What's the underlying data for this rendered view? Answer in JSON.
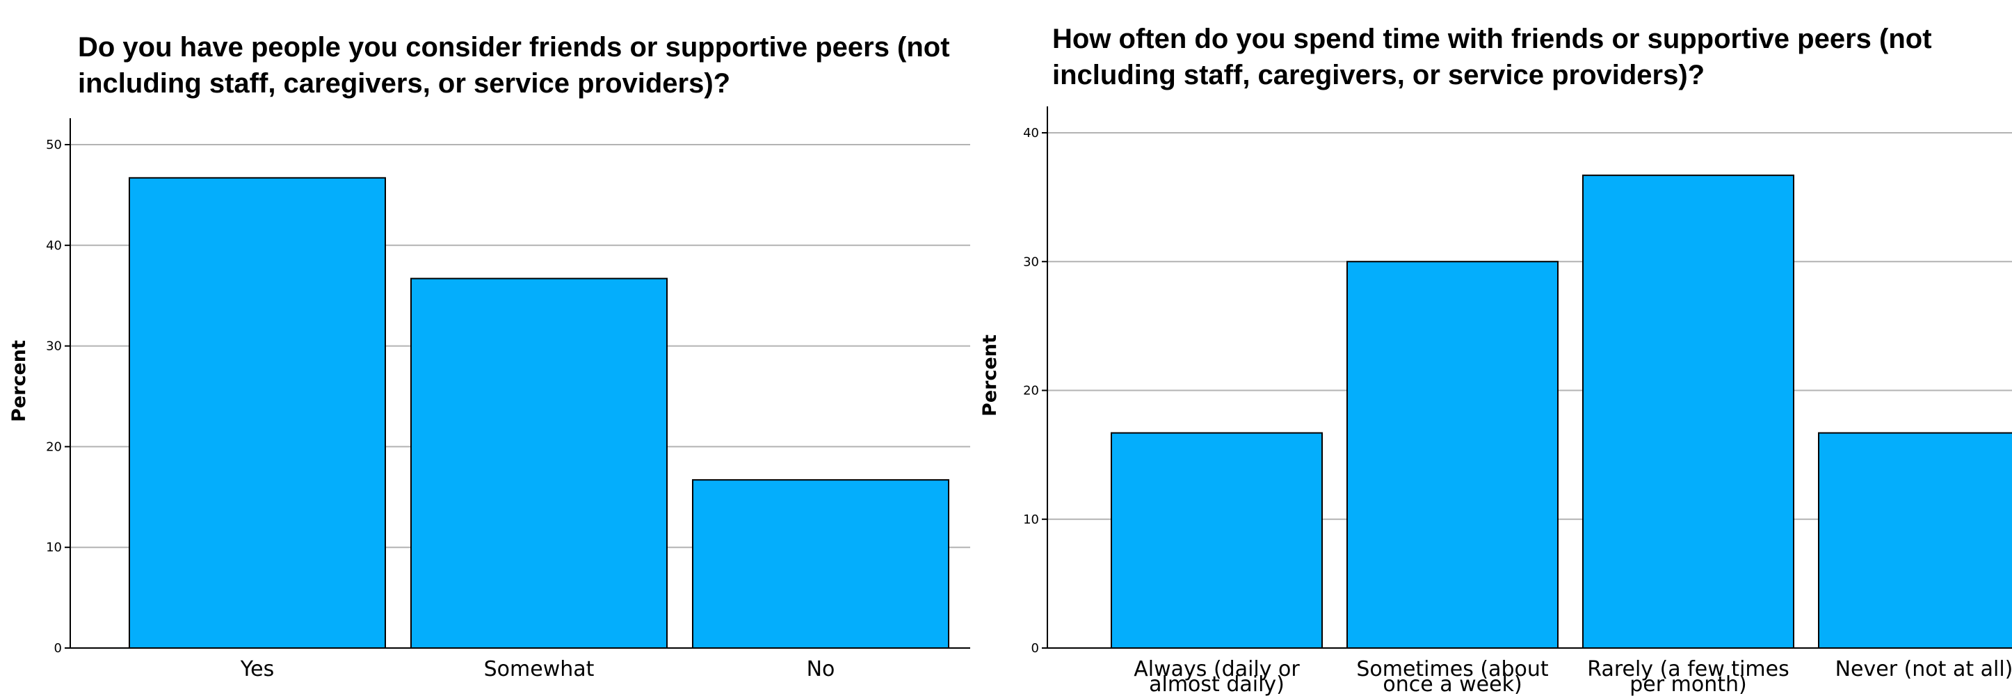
{
  "style": {
    "bar_color": "#04AEFC",
    "bar_stroke": "#000000",
    "grid_color": "#B3B3B3",
    "axis_color": "#000000"
  },
  "chart_data": [
    {
      "type": "bar",
      "title": "Do you have people you consider friends or supportive peers (not\nincluding staff, caregivers, or service providers)?",
      "xlabel": "",
      "ylabel": "Percent",
      "categories": [
        "Yes",
        "Somewhat",
        "No"
      ],
      "values": [
        46.7,
        36.7,
        16.7
      ],
      "ylim": [
        0,
        50
      ],
      "yticks": [
        0,
        10,
        20,
        30,
        40,
        50
      ],
      "grid": true,
      "legend": "none"
    },
    {
      "type": "bar",
      "title": "How often do you spend time with friends or supportive peers (not\nincluding staff, caregivers, or service providers)?",
      "xlabel": "",
      "ylabel": "Percent",
      "categories": [
        "Always (daily or\nalmost daily)",
        "Sometimes (about\nonce a week)",
        "Rarely (a few times\nper month)",
        "Never (not at all)"
      ],
      "values": [
        16.7,
        30.0,
        36.7,
        16.7
      ],
      "ylim": [
        0,
        40
      ],
      "yticks": [
        0,
        10,
        20,
        30,
        40
      ],
      "grid": true,
      "legend": "none"
    }
  ]
}
